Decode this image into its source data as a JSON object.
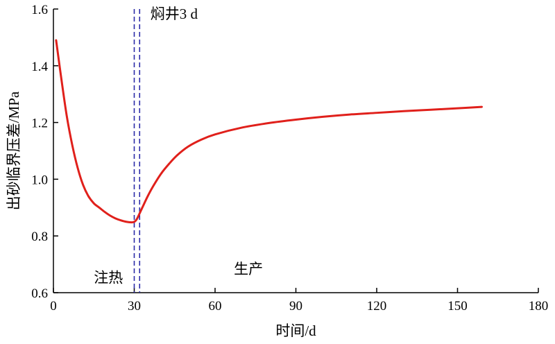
{
  "chart_data": {
    "type": "line",
    "xlabel": "时间/d",
    "ylabel": "出砂临界压差/MPa",
    "xlim": [
      0,
      180
    ],
    "ylim": [
      0.6,
      1.6
    ],
    "x_ticks": [
      0,
      30,
      60,
      90,
      120,
      150,
      180
    ],
    "y_ticks": [
      "0.6",
      "0.8",
      "1.0",
      "1.2",
      "1.4",
      "1.6"
    ],
    "series": [
      {
        "color": "#e0201b",
        "x": [
          1,
          3,
          5,
          7,
          9,
          11,
          13,
          15,
          17,
          19,
          21,
          23,
          25,
          27,
          29,
          30,
          31,
          33,
          35,
          37,
          40,
          43,
          46,
          50,
          55,
          60,
          70,
          80,
          90,
          100,
          110,
          120,
          130,
          140,
          150,
          159
        ],
        "y": [
          1.49,
          1.35,
          1.22,
          1.12,
          1.04,
          0.98,
          0.94,
          0.915,
          0.9,
          0.885,
          0.872,
          0.862,
          0.855,
          0.85,
          0.848,
          0.85,
          0.86,
          0.9,
          0.94,
          0.975,
          1.02,
          1.055,
          1.085,
          1.115,
          1.14,
          1.158,
          1.182,
          1.198,
          1.21,
          1.22,
          1.228,
          1.234,
          1.24,
          1.245,
          1.25,
          1.255
        ]
      }
    ],
    "reference_lines": [
      {
        "x": 30,
        "color": "#2a2aa8",
        "style": "dashed"
      },
      {
        "x": 32,
        "color": "#2a2aa8",
        "style": "dashed"
      }
    ],
    "annotations": [
      {
        "text": "焖井3 d",
        "x": 36,
        "y": 1.6
      },
      {
        "text": "注热",
        "x": 15,
        "y": 0.67
      },
      {
        "text": "生产",
        "x": 67,
        "y": 0.7
      }
    ],
    "grid": false,
    "legend": "none"
  }
}
